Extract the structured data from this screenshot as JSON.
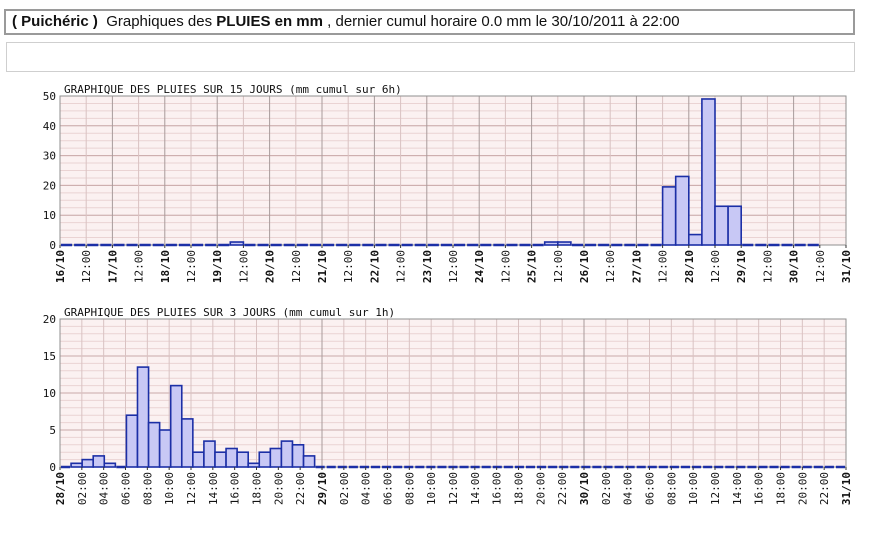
{
  "header": {
    "station": "( Puichéric )",
    "prefix": "Graphiques des",
    "emph": "PLUIES en mm",
    "suffix": ", dernier cumul horaire 0.0 mm le 30/10/2011 à 22:00"
  },
  "chart_data": [
    {
      "type": "bar",
      "title": "GRAPHIQUE DES PLUIES SUR 15 JOURS (mm cumul sur 6h)",
      "ylim": [
        0,
        50
      ],
      "yticks": [
        0,
        10,
        20,
        30,
        40,
        50
      ],
      "xticks": [
        "16/10",
        "12:00",
        "17/10",
        "12:00",
        "18/10",
        "12:00",
        "19/10",
        "12:00",
        "20/10",
        "12:00",
        "21/10",
        "12:00",
        "22/10",
        "12:00",
        "23/10",
        "12:00",
        "24/10",
        "12:00",
        "25/10",
        "12:00",
        "26/10",
        "12:00",
        "27/10",
        "12:00",
        "28/10",
        "12:00",
        "29/10",
        "12:00",
        "30/10",
        "12:00",
        "31/10"
      ],
      "bars_per_day": 4,
      "values": [
        0,
        0,
        0,
        0,
        0,
        0,
        0,
        0,
        0,
        0,
        0,
        0,
        0,
        1,
        0,
        0,
        0,
        0,
        0,
        0,
        0,
        0,
        0,
        0,
        0,
        0,
        0,
        0,
        0,
        0,
        0,
        0,
        0,
        0,
        0,
        0,
        0,
        1,
        1,
        0,
        0,
        0,
        0,
        0,
        0,
        0,
        19.5,
        23,
        3.5,
        49,
        13,
        13,
        0,
        0,
        0,
        0,
        0,
        0
      ]
    },
    {
      "type": "bar",
      "title": "GRAPHIQUE DES PLUIES SUR 3 JOURS (mm cumul sur 1h)",
      "ylim": [
        0,
        20
      ],
      "yticks": [
        0,
        5,
        10,
        15,
        20
      ],
      "xticks": [
        "28/10",
        "02:00",
        "04:00",
        "06:00",
        "08:00",
        "10:00",
        "12:00",
        "14:00",
        "16:00",
        "18:00",
        "20:00",
        "22:00",
        "29/10",
        "02:00",
        "04:00",
        "06:00",
        "08:00",
        "10:00",
        "12:00",
        "14:00",
        "16:00",
        "18:00",
        "20:00",
        "22:00",
        "30/10",
        "02:00",
        "04:00",
        "06:00",
        "08:00",
        "10:00",
        "12:00",
        "14:00",
        "16:00",
        "18:00",
        "20:00",
        "22:00",
        "31/10"
      ],
      "values": [
        0,
        0.5,
        1,
        1.5,
        0.5,
        0,
        7,
        13.5,
        6,
        5,
        11,
        6.5,
        2,
        3.5,
        2,
        2.5,
        2,
        0.5,
        2,
        2.5,
        3.5,
        3,
        1.5,
        0,
        0,
        0,
        0,
        0,
        0,
        0,
        0,
        0,
        0,
        0,
        0,
        0,
        0,
        0,
        0,
        0,
        0,
        0,
        0,
        0,
        0,
        0,
        0,
        0,
        0,
        0,
        0,
        0,
        0,
        0,
        0,
        0,
        0,
        0,
        0,
        0,
        0,
        0,
        0,
        0,
        0,
        0,
        0,
        0,
        0,
        0,
        0
      ]
    }
  ]
}
